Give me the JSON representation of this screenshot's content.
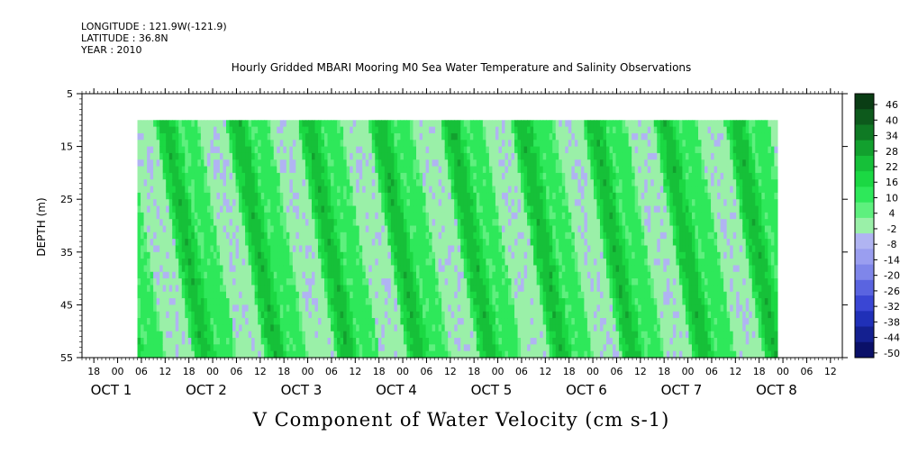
{
  "header": {
    "longitude": "LONGITUDE : 121.9W(-121.9)",
    "latitude": "LATITUDE : 36.8N",
    "year": "YEAR : 2010"
  },
  "chart_data": {
    "type": "heatmap",
    "title": "Hourly Gridded MBARI Mooring M0 Sea Water Temperature and Salinity Observations",
    "xlabel": "V Component of Water Velocity (cm s-1)",
    "ylabel": "DEPTH (m)",
    "ylim": [
      5,
      55
    ],
    "y_inverted": true,
    "y_ticks": [
      5,
      15,
      25,
      35,
      45,
      55
    ],
    "data_depth_range": [
      10,
      55
    ],
    "x_hour_ticks": [
      "18",
      "00",
      "06",
      "12",
      "18",
      "00",
      "06",
      "12",
      "18",
      "00",
      "06",
      "12",
      "18",
      "00",
      "06",
      "12",
      "18",
      "00",
      "06",
      "12",
      "18",
      "00",
      "06",
      "12",
      "18",
      "00",
      "06",
      "12",
      "18",
      "00",
      "06",
      "12"
    ],
    "x_date_labels": [
      "OCT  1",
      "OCT  2",
      "OCT  3",
      "OCT  4",
      "OCT  5",
      "OCT  6",
      "OCT  7",
      "OCT  8"
    ],
    "colorbar": {
      "levels": [
        46,
        40,
        34,
        28,
        22,
        16,
        10,
        4,
        -2,
        -8,
        -14,
        -20,
        -26,
        -32,
        -38,
        -44,
        -50
      ],
      "colors": [
        "#0a3d14",
        "#0d5a1c",
        "#0f7a24",
        "#12a02e",
        "#16c039",
        "#1bd843",
        "#2ee85a",
        "#5ef07e",
        "#9af0a8",
        "#b0b4f2",
        "#9a9ef0",
        "#7f86ea",
        "#5a64e0",
        "#3a46d4",
        "#2030b8",
        "#142090",
        "#0a1068"
      ]
    },
    "bands_start_hours": [
      5,
      23,
      41,
      59,
      77,
      95,
      113,
      131,
      149,
      167
    ],
    "data_start_hour": 14,
    "data_end_hour": 175
  }
}
